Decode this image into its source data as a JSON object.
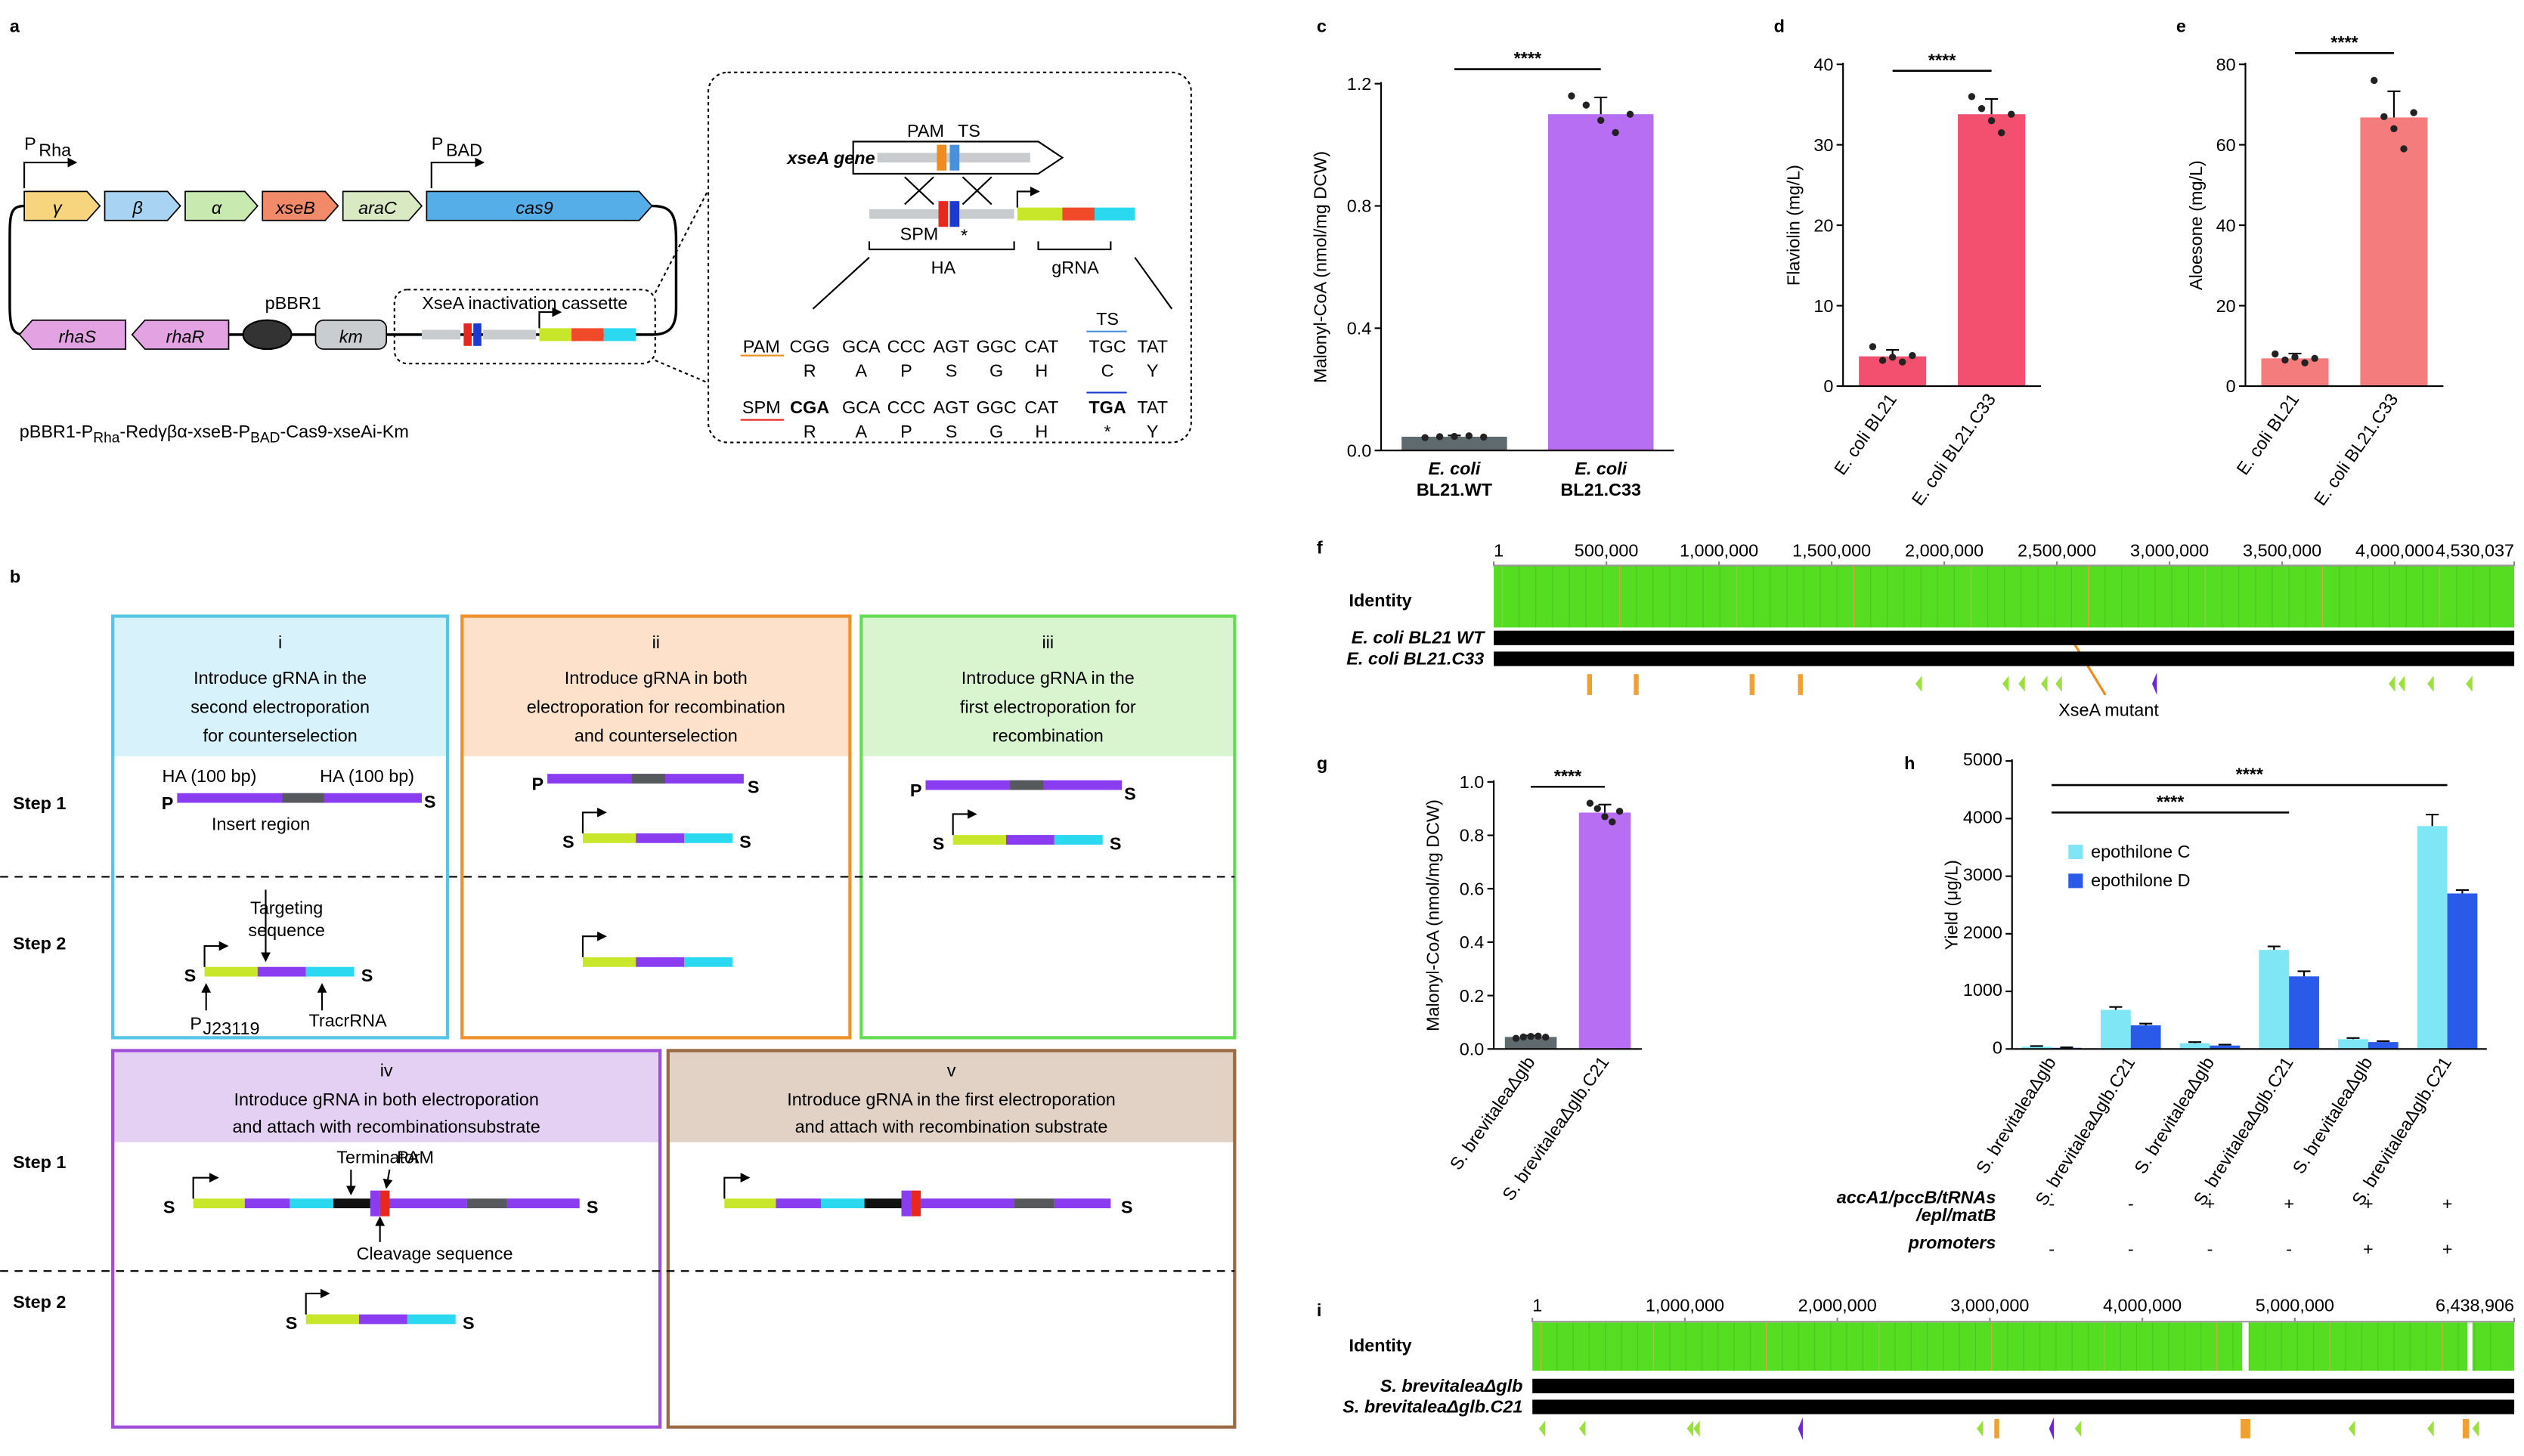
{
  "panel_letters": [
    "a",
    "b",
    "c",
    "d",
    "e",
    "f",
    "g",
    "h",
    "i"
  ],
  "panel_a": {
    "promoter_rha": [
      "P",
      "Rha"
    ],
    "promoter_bad": [
      "P",
      "BAD"
    ],
    "genes_top": [
      {
        "name": "γ",
        "color": "#f7d57e"
      },
      {
        "name": "β",
        "color": "#a8d3f2"
      },
      {
        "name": "α",
        "color": "#c8eab0"
      },
      {
        "name": "xseB",
        "color": "#f08a68"
      },
      {
        "name": "araC",
        "color": "#d9e9c2"
      },
      {
        "name": "cas9",
        "color": "#55aee8"
      }
    ],
    "genes_bottom": [
      {
        "name": "rhaS",
        "color": "#e3a3e3"
      },
      {
        "name": "rhaR",
        "color": "#e3a3e3"
      }
    ],
    "origin": "pBBR1",
    "marker": "km",
    "cassette": "XseA inactivation cassette",
    "plasmid_name": [
      "pBBR1-P",
      "Rha",
      "-Redγβα-xseB-P",
      "BAD",
      "-Cas9-xseAi-Km"
    ],
    "inset": {
      "gene": "xseA gene",
      "pam": "PAM",
      "ts": "TS",
      "spm": "SPM",
      "star": "*",
      "ha": "HA",
      "grna": "gRNA",
      "rows": [
        {
          "label": "PAM",
          "label_color": "#f08c1e",
          "codons": [
            "CGG",
            "GCA",
            "CCC",
            "AGT",
            "GGC",
            "CAT",
            "TGC",
            "TAT"
          ],
          "codon_colors": [
            "#f08c1e",
            "#000000",
            "#000000",
            "#000000",
            "#000000",
            "#000000",
            "#4a90d9",
            "#000000"
          ],
          "aa": [
            "R",
            "A",
            "P",
            "S",
            "G",
            "H",
            "C",
            "Y"
          ]
        },
        {
          "label": "SPM",
          "label_color": "#e8281e",
          "codons": [
            "CGA",
            "GCA",
            "CCC",
            "AGT",
            "GGC",
            "CAT",
            "TGA",
            "TAT"
          ],
          "codon_colors": [
            "#e8281e",
            "#000000",
            "#000000",
            "#000000",
            "#000000",
            "#000000",
            "#1a3ad0",
            "#000000"
          ],
          "aa": [
            "R",
            "A",
            "P",
            "S",
            "G",
            "H",
            "*",
            "Y"
          ]
        }
      ]
    }
  },
  "panel_b": {
    "steps": [
      "Step 1",
      "Step 2"
    ],
    "boxes": [
      {
        "numeral": "i",
        "title_lines": [
          "Introduce gRNA in the",
          "second electroporation",
          "for counterselection"
        ],
        "border_color": "#55c6e6",
        "header_color": "#d7f2fa"
      },
      {
        "numeral": "ii",
        "title_lines": [
          "Introduce gRNA in both",
          "electroporation for recombination",
          "and counterselection"
        ],
        "border_color": "#f0902a",
        "header_color": "#fde1cb"
      },
      {
        "numeral": "iii",
        "title_lines": [
          "Introduce gRNA in the",
          "first electroporation for",
          "recombination"
        ],
        "border_color": "#66dc55",
        "header_color": "#d8f5cf"
      },
      {
        "numeral": "iv",
        "title_lines": [
          "Introduce gRNA in both electroporation",
          "and attach with recombinationsubstrate"
        ],
        "border_color": "#a050d8",
        "header_color": "#e4d0f2"
      },
      {
        "numeral": "v",
        "title_lines": [
          "Introduce gRNA in the first electroporation",
          "and attach with recombination substrate"
        ],
        "border_color": "#9a6a44",
        "header_color": "#e2d2c6"
      }
    ],
    "labels": {
      "s": "S",
      "p": "P",
      "ha": "HA (100 bp)",
      "insert": "Insert region",
      "targeting": [
        "Targeting",
        "sequence"
      ],
      "pj": [
        "P",
        "J23119"
      ],
      "tracr": "TracrRNA",
      "terminator": "Terminator",
      "pam": "PAM",
      "cleavage": "Cleavage sequence"
    }
  },
  "chart_data": [
    {
      "type": "bar",
      "ylabel": "Malonyl-CoA (nmol/mg DCW)",
      "categories": [
        "E. coli BL21.WT",
        "E. coli BL21.C33"
      ],
      "values": [
        0.045,
        1.1
      ],
      "errors": [
        0.004,
        0.055
      ],
      "points": [
        [
          0.042,
          0.045,
          0.046,
          0.048,
          0.044
        ],
        [
          1.16,
          1.13,
          1.08,
          1.04,
          1.1
        ]
      ],
      "colors": [
        "#5f6a6e",
        "#b86ef2"
      ],
      "ylim": [
        0,
        1.2
      ],
      "yticks": [
        {
          "value": 0,
          "label": "0.0"
        },
        0.4,
        0.8,
        1.2
      ],
      "significance": [
        "****"
      ]
    },
    {
      "type": "bar",
      "ylabel": "Flaviolin (mg/L)",
      "categories": [
        "E. coli BL21",
        "E. coli BL21.C33"
      ],
      "values": [
        3.7,
        33.8
      ],
      "errors": [
        0.8,
        1.9
      ],
      "points": [
        [
          4.9,
          3.2,
          3.6,
          3.0,
          3.8
        ],
        [
          36,
          34.5,
          33,
          31.5,
          33.8
        ]
      ],
      "colors": [
        "#f2506e",
        "#f2506e"
      ],
      "ylim": [
        0,
        40
      ],
      "yticks": [
        0,
        10,
        20,
        30,
        40
      ],
      "significance": [
        "****"
      ]
    },
    {
      "type": "bar",
      "ylabel": "Aloesone (mg/L)",
      "categories": [
        "E. coli BL21",
        "E. coli BL21.C33"
      ],
      "values": [
        6.9,
        66.8
      ],
      "errors": [
        1.2,
        6.5
      ],
      "points": [
        [
          8,
          6.5,
          7.2,
          5.8,
          6.9
        ],
        [
          76,
          67,
          64,
          59,
          68
        ]
      ],
      "colors": [
        "#f47c7c",
        "#f47c7c"
      ],
      "ylim": [
        0,
        80
      ],
      "yticks": [
        0,
        20,
        40,
        60,
        80
      ],
      "significance": [
        "****"
      ]
    },
    {
      "type": "bar",
      "ylabel": "Malonyl-CoA (nmol/mg DCW)",
      "categories": [
        "S. brevitaleaΔglb",
        "S. brevitaleaΔglb.C21"
      ],
      "values": [
        0.045,
        0.885
      ],
      "errors": [
        0.005,
        0.03
      ],
      "points": [
        [
          0.04,
          0.045,
          0.047,
          0.048,
          0.044
        ],
        [
          0.92,
          0.9,
          0.87,
          0.85,
          0.89
        ]
      ],
      "colors": [
        "#5f6a6e",
        "#b86ef2"
      ],
      "ylim": [
        0,
        1
      ],
      "yticks": [
        {
          "value": 0,
          "label": "0.0"
        },
        0.2,
        0.4,
        0.6,
        0.8,
        {
          "value": 1,
          "label": "1.0"
        }
      ],
      "significance": [
        "****"
      ]
    },
    {
      "type": "grouped_bar",
      "ylabel": "Yield (μg/L)",
      "categories": [
        "S. brevitaleaΔglb",
        "S. brevitaleaΔglb.C21",
        "S. brevitaleaΔglb",
        "S. brevitaleaΔglb.C21",
        "S. brevitaleaΔglb",
        "S. brevitaleaΔglb.C21"
      ],
      "series": [
        {
          "name": "epothilone C",
          "color": "#7fe6f5",
          "values": [
            40,
            680,
            100,
            1720,
            170,
            3870
          ],
          "errors": [
            10,
            50,
            20,
            60,
            20,
            200
          ]
        },
        {
          "name": "epothilone D",
          "color": "#2a5be8",
          "values": [
            20,
            410,
            60,
            1260,
            120,
            2700
          ],
          "errors": [
            8,
            30,
            15,
            90,
            15,
            60
          ]
        }
      ],
      "ylim": [
        0,
        5000
      ],
      "yticks": [
        0,
        1000,
        2000,
        3000,
        4000,
        5000
      ],
      "significance": [
        "****",
        "****"
      ],
      "factors": [
        {
          "name_lines": [
            "accA1/pccB/tRNAs",
            "/epl/matB"
          ],
          "signs": [
            "-",
            "-",
            "+",
            "+",
            "+",
            "+"
          ]
        },
        {
          "name_lines": [
            "promoters"
          ],
          "signs": [
            "-",
            "-",
            "-",
            "-",
            "+",
            "+"
          ]
        }
      ]
    },
    {
      "type": "alignment",
      "track_label": "Identity",
      "genomes": [
        "E. coli BL21 WT",
        "E. coli BL21.C33"
      ],
      "annotation": "XseA mutant",
      "xlim": [
        1,
        4530037
      ],
      "xticks": [
        1,
        {
          "value": 500000,
          "label": "500,000"
        },
        {
          "value": 1000000,
          "label": "1,000,000"
        },
        {
          "value": 1500000,
          "label": "1,500,000"
        },
        {
          "value": 2000000,
          "label": "2,000,000"
        },
        {
          "value": 2500000,
          "label": "2,500,000"
        },
        {
          "value": 3000000,
          "label": "3,000,000"
        },
        {
          "value": 3500000,
          "label": "3,500,000"
        },
        {
          "value": 4000000,
          "label": "4,000,000"
        },
        {
          "value": 4530037,
          "label": "4,530,037"
        }
      ]
    },
    {
      "type": "alignment",
      "track_label": "Identity",
      "genomes": [
        "S. brevitaleaΔglb",
        "S. brevitaleaΔglb.C21"
      ],
      "xlim": [
        1,
        6438906
      ],
      "xticks": [
        1,
        {
          "value": 1000000,
          "label": "1,000,000"
        },
        {
          "value": 2000000,
          "label": "2,000,000"
        },
        {
          "value": 3000000,
          "label": "3,000,000"
        },
        {
          "value": 4000000,
          "label": "4,000,000"
        },
        {
          "value": 5000000,
          "label": "5,000,000"
        },
        {
          "value": 6438906,
          "label": "6,438,906"
        }
      ]
    }
  ]
}
